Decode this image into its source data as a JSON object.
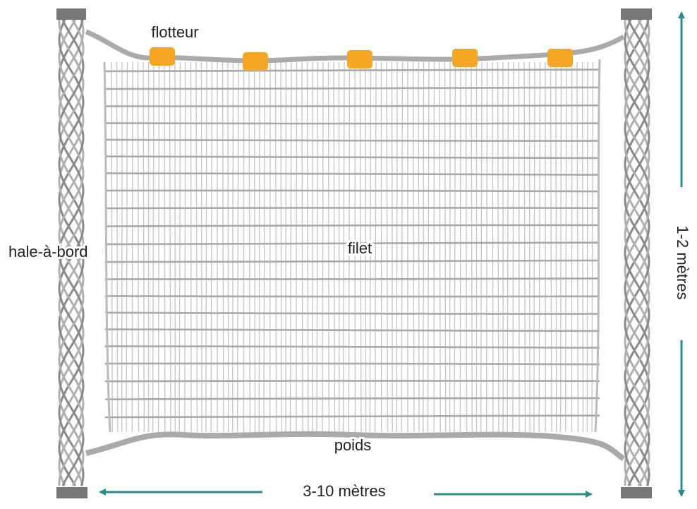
{
  "labels": {
    "float": "flotteur",
    "rope": "hale-à-bord",
    "net": "filet",
    "weight": "poids",
    "width": "3-10 mètres",
    "height": "1-2 mètres"
  }
}
